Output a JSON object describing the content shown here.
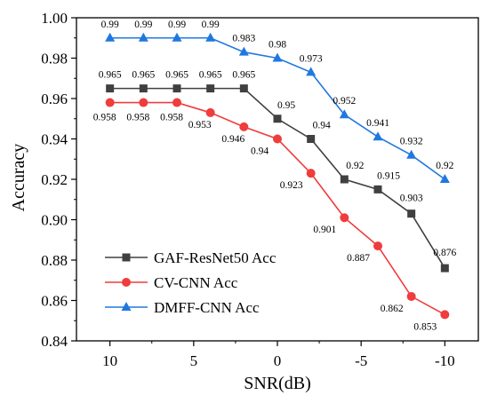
{
  "chart_data": {
    "type": "line",
    "xlabel": "SNR(dB)",
    "ylabel": "Accuracy",
    "x": [
      10,
      8,
      6,
      4,
      2,
      0,
      -2,
      -4,
      -6,
      -8,
      -10
    ],
    "x_ticks": [
      10,
      5,
      0,
      -5,
      -10
    ],
    "x_tick_labels": [
      "10",
      "5",
      "0",
      "-5",
      "-10"
    ],
    "xlim": [
      12,
      -12
    ],
    "ylim": [
      0.84,
      1.0
    ],
    "y_ticks": [
      0.84,
      0.86,
      0.88,
      0.9,
      0.92,
      0.94,
      0.96,
      0.98,
      1.0
    ],
    "y_tick_labels": [
      "0.84",
      "0.86",
      "0.88",
      "0.90",
      "0.92",
      "0.94",
      "0.96",
      "0.98",
      "1.00"
    ],
    "grid": false,
    "legend_position": "bottom-left",
    "series": [
      {
        "name": "GAF-ResNet50 Acc",
        "marker": "square",
        "color": "#404040",
        "values": [
          0.965,
          0.965,
          0.965,
          0.965,
          0.965,
          0.95,
          0.94,
          0.92,
          0.915,
          0.903,
          0.876
        ],
        "labels": [
          "0.965",
          "0.965",
          "0.965",
          "0.965",
          "0.965",
          "0.95",
          "0.94",
          "0.92",
          "0.915",
          "0.903",
          "0.876"
        ]
      },
      {
        "name": "CV-CNN Acc",
        "marker": "circle",
        "color": "#f03c3c",
        "values": [
          0.958,
          0.958,
          0.958,
          0.953,
          0.946,
          0.94,
          0.923,
          0.901,
          0.887,
          0.862,
          0.853
        ],
        "labels": [
          "0.958",
          "0.958",
          "0.958",
          "0.953",
          "0.946",
          "0.94",
          "0.923",
          "0.901",
          "0.887",
          "0.862",
          "0.853"
        ]
      },
      {
        "name": "DMFF-CNN Acc",
        "marker": "triangle",
        "color": "#1f78e0",
        "values": [
          0.99,
          0.99,
          0.99,
          0.99,
          0.983,
          0.98,
          0.973,
          0.952,
          0.941,
          0.932,
          0.92
        ],
        "labels": [
          "0.99",
          "0.99",
          "0.99",
          "0.99",
          "0.983",
          "0.98",
          "0.973",
          "0.952",
          "0.941",
          "0.932",
          "0.92"
        ]
      }
    ]
  }
}
